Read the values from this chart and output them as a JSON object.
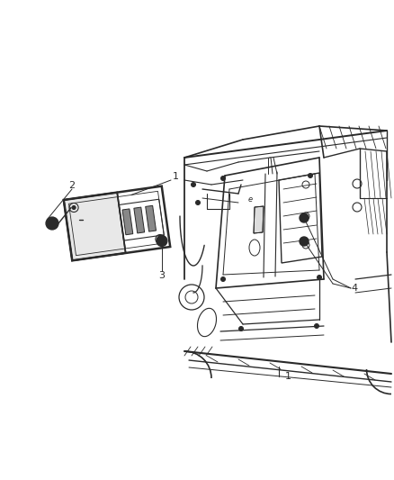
{
  "background_color": "#ffffff",
  "line_color": "#2a2a2a",
  "label_color": "#2a2a2a",
  "fig_width": 4.38,
  "fig_height": 5.33,
  "dpi": 100
}
